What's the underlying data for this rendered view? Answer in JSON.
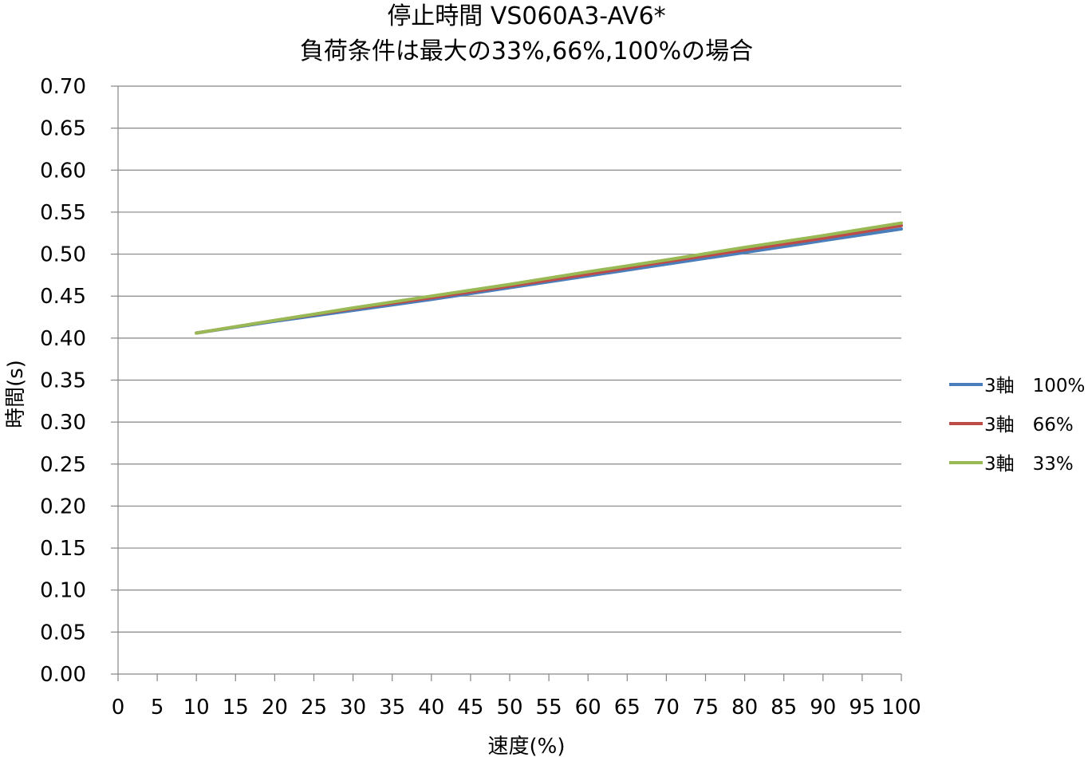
{
  "chart_data": {
    "type": "line",
    "title": [
      "停止時間 VS060A3-AV6*",
      "負荷条件は最大の33%,66%,100%の場合"
    ],
    "xlabel": "速度(%)",
    "ylabel": "時間(s)",
    "xlim": [
      0,
      100
    ],
    "ylim": [
      0,
      0.7
    ],
    "xticks": [
      "0",
      "5",
      "10",
      "15",
      "20",
      "25",
      "30",
      "35",
      "40",
      "45",
      "50",
      "55",
      "60",
      "65",
      "70",
      "75",
      "80",
      "85",
      "90",
      "95",
      "100"
    ],
    "yticks": [
      "0.00",
      "0.05",
      "0.10",
      "0.15",
      "0.20",
      "0.25",
      "0.30",
      "0.35",
      "0.40",
      "0.45",
      "0.50",
      "0.55",
      "0.60",
      "0.65",
      "0.70"
    ],
    "grid": "horizontal",
    "legend_position": "right",
    "x": [
      10,
      20,
      30,
      40,
      50,
      60,
      70,
      80,
      90,
      100
    ],
    "series": [
      {
        "name": "3軸　100%",
        "color": "#4a7ebb",
        "values": [
          0.406,
          0.42,
          0.433,
          0.446,
          0.46,
          0.474,
          0.488,
          0.502,
          0.516,
          0.53
        ]
      },
      {
        "name": "3軸　66%",
        "color": "#be4b48",
        "values": [
          0.406,
          0.421,
          0.435,
          0.448,
          0.462,
          0.476,
          0.491,
          0.505,
          0.519,
          0.534
        ]
      },
      {
        "name": "3軸　33%",
        "color": "#98b954",
        "values": [
          0.406,
          0.421,
          0.436,
          0.45,
          0.464,
          0.479,
          0.493,
          0.508,
          0.522,
          0.537
        ]
      }
    ]
  }
}
